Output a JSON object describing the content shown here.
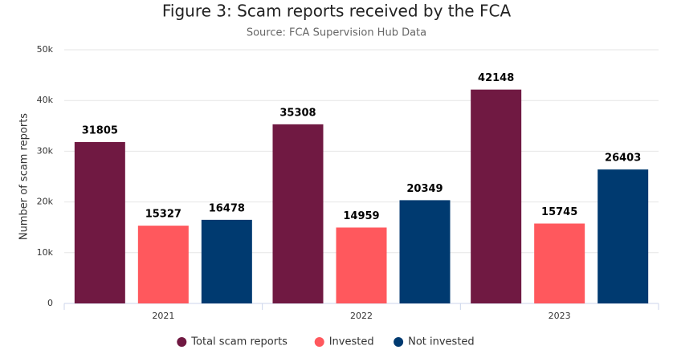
{
  "chart_data": {
    "type": "bar",
    "title": "Figure 3: Scam reports received by the FCA",
    "subtitle": "Source: FCA Supervision Hub Data",
    "y_label": "Number of scam reports",
    "categories": [
      "2021",
      "2022",
      "2023"
    ],
    "series": [
      {
        "name": "Total scam reports",
        "color": "#701942",
        "values": [
          31805,
          35308,
          42148
        ]
      },
      {
        "name": "Invested",
        "color": "#ff585d",
        "values": [
          15327,
          14959,
          15745
        ]
      },
      {
        "name": "Not invested",
        "color": "#003a70",
        "values": [
          16478,
          20349,
          26403
        ]
      }
    ],
    "ylim": [
      0,
      50000
    ],
    "yticks": [
      0,
      {
        "value": 10000,
        "label": "10k"
      },
      {
        "value": 20000,
        "label": "20k"
      },
      {
        "value": 30000,
        "label": "30k"
      },
      {
        "value": 40000,
        "label": "40k"
      },
      {
        "value": 50000,
        "label": "50k"
      }
    ],
    "grid": true
  }
}
